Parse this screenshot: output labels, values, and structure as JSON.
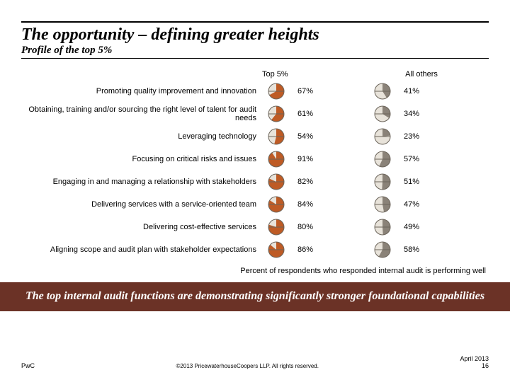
{
  "title": "The opportunity – defining greater heights",
  "subtitle": "Profile of the top 5%",
  "columns": {
    "top5": "Top 5%",
    "others": "All others"
  },
  "gauge_colors": {
    "top5_fill": "#be5b25",
    "others_fill": "#8a8278",
    "empty": "#e8e3da",
    "stroke": "#6b645a"
  },
  "rows": [
    {
      "label": "Promoting quality improvement and innovation",
      "top5": 67,
      "others": 41
    },
    {
      "label": "Obtaining, training and/or sourcing the right level of talent for audit needs",
      "top5": 61,
      "others": 34
    },
    {
      "label": "Leveraging technology",
      "top5": 54,
      "others": 23
    },
    {
      "label": "Focusing on critical risks and issues",
      "top5": 91,
      "others": 57
    },
    {
      "label": "Engaging in and managing a relationship with stakeholders",
      "top5": 82,
      "others": 51
    },
    {
      "label": "Delivering services with a service-oriented team",
      "top5": 84,
      "others": 47
    },
    {
      "label": "Delivering cost-effective services",
      "top5": 80,
      "others": 49
    },
    {
      "label": "Aligning scope and audit plan with stakeholder expectations",
      "top5": 86,
      "others": 58
    }
  ],
  "caption": "Percent of respondents who responded internal audit is performing well",
  "banner": "The top internal audit functions are demonstrating significantly stronger foundational capabilities",
  "footer": {
    "left": "PwC",
    "center": "©2013 PricewaterhouseCoopers LLP. All rights reserved.",
    "date": "April 2013",
    "page": "16"
  }
}
